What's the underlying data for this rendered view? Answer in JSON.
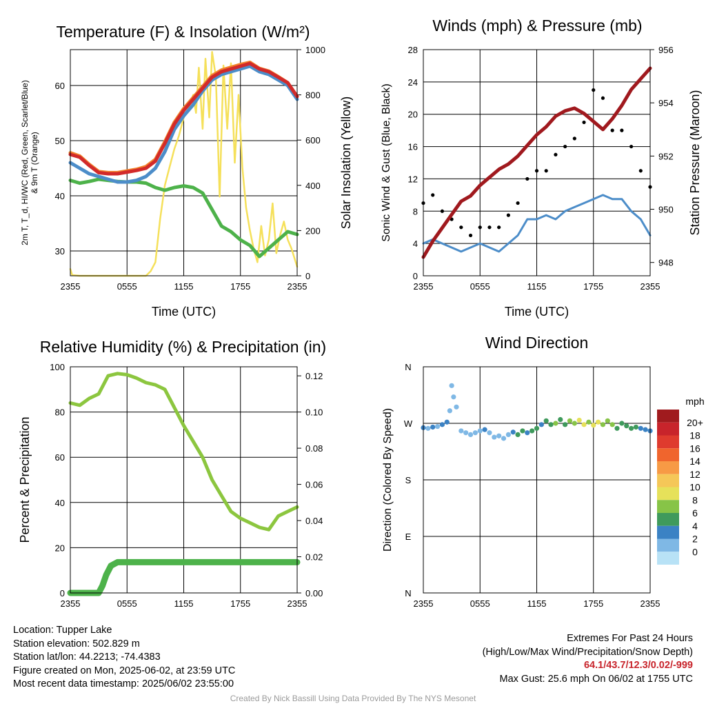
{
  "chart_data": [
    {
      "type": "line",
      "title": "Temperature (F) & Insolation (W/m²)",
      "xlabel": "Time (UTC)",
      "ylabel_left_lines": [
        "2m T, T_d, HI/WC (Red, Green, Scarlet/Blue)",
        "& 9m T (Orange)"
      ],
      "ylabel_right": "Solar Insolation (Yellow)",
      "x_ticks": [
        "2355",
        "0555",
        "1155",
        "1755",
        "2355"
      ],
      "ylim_left": [
        25.5,
        66.5
      ],
      "y_ticks_left": [
        30,
        40,
        50,
        60
      ],
      "ylim_right": [
        0,
        1000
      ],
      "y_ticks_right": [
        0,
        200,
        400,
        600,
        800,
        1000
      ],
      "grid": true,
      "series": [
        {
          "name": "Red",
          "axis": "left",
          "color": "#d22a2a",
          "x": [
            0,
            1,
            2,
            3,
            4,
            5,
            6,
            7,
            8,
            9,
            10,
            11,
            12,
            13,
            14,
            15,
            16,
            17,
            18,
            19,
            20,
            21,
            22,
            23,
            24
          ],
          "values": [
            47.5,
            47.0,
            45.5,
            44.2,
            44.0,
            44.0,
            44.3,
            44.6,
            45.0,
            46.3,
            49.5,
            53.0,
            55.5,
            57.5,
            59.5,
            61.5,
            62.5,
            63.0,
            63.5,
            64.0,
            63.0,
            62.5,
            61.5,
            60.5,
            58.0
          ]
        },
        {
          "name": "Orange",
          "axis": "left",
          "color": "#f2822a",
          "x": [
            0,
            1,
            2,
            3,
            4,
            5,
            6,
            7,
            8,
            9,
            10,
            11,
            12,
            13,
            14,
            15,
            16,
            17,
            18,
            19,
            20,
            21,
            22,
            23,
            24
          ],
          "values": [
            47.8,
            47.2,
            45.7,
            44.4,
            44.2,
            44.2,
            44.5,
            44.8,
            45.3,
            46.6,
            49.8,
            53.3,
            55.8,
            57.8,
            59.8,
            61.8,
            62.8,
            63.3,
            63.8,
            64.2,
            63.1,
            62.6,
            61.6,
            60.5,
            58.0
          ]
        },
        {
          "name": "Blue",
          "axis": "left",
          "color": "#4c8dc9",
          "x": [
            0,
            1,
            2,
            3,
            4,
            5,
            6,
            7,
            8,
            9,
            10,
            11,
            12,
            13,
            14,
            15,
            16,
            17,
            18,
            19,
            20,
            21,
            22,
            23,
            24
          ],
          "values": [
            46.0,
            45.0,
            44.0,
            43.5,
            43.0,
            42.5,
            42.5,
            42.8,
            43.5,
            45.0,
            48.0,
            52.0,
            54.5,
            56.5,
            59.0,
            61.0,
            62.0,
            62.5,
            63.0,
            63.5,
            62.5,
            62.0,
            61.0,
            60.0,
            57.5
          ]
        },
        {
          "name": "Green",
          "axis": "left",
          "color": "#4db24a",
          "x": [
            0,
            1,
            2,
            3,
            4,
            5,
            6,
            7,
            8,
            9,
            10,
            11,
            12,
            13,
            14,
            15,
            16,
            17,
            18,
            19,
            20,
            21,
            22,
            23,
            24
          ],
          "values": [
            42.8,
            42.3,
            42.6,
            43.0,
            42.8,
            42.6,
            42.5,
            42.5,
            42.3,
            41.5,
            41.0,
            41.5,
            41.8,
            41.5,
            40.5,
            37.5,
            34.5,
            33.5,
            32.0,
            31.0,
            29.0,
            30.5,
            32.0,
            33.5,
            33.0
          ]
        },
        {
          "name": "Yellow",
          "axis": "right",
          "color": "#f5e05a",
          "x": [
            0,
            0.2,
            1,
            2,
            3,
            4,
            5,
            6,
            7,
            8,
            8.5,
            9,
            9.5,
            10,
            10.5,
            11,
            11.5,
            12,
            12.5,
            13,
            13.3,
            13.6,
            14,
            14.3,
            14.7,
            15,
            15.4,
            15.8,
            16.2,
            16.6,
            17,
            17.4,
            17.8,
            18.2,
            18.6,
            19,
            19.4,
            19.8,
            20.2,
            20.6,
            21,
            21.4,
            21.8,
            22.2,
            22.6,
            23,
            23.4,
            24
          ],
          "values": [
            30,
            3,
            0,
            0,
            0,
            0,
            0,
            0,
            0,
            0,
            20,
            60,
            250,
            400,
            480,
            560,
            620,
            700,
            740,
            800,
            720,
            920,
            650,
            960,
            700,
            990,
            880,
            350,
            930,
            650,
            940,
            500,
            800,
            480,
            300,
            200,
            120,
            60,
            220,
            90,
            160,
            320,
            100,
            180,
            240,
            160,
            120,
            40
          ]
        }
      ]
    },
    {
      "type": "line",
      "title": "Winds (mph) & Pressure (mb)",
      "xlabel": "Time (UTC)",
      "ylabel_left": "Sonic Wind & Gust (Blue, Black)",
      "ylabel_right": "Station Pressure (Maroon)",
      "x_ticks": [
        "2355",
        "0555",
        "1155",
        "1755",
        "2355"
      ],
      "ylim_left": [
        0,
        28
      ],
      "y_ticks_left": [
        0,
        4,
        8,
        12,
        16,
        20,
        24,
        28
      ],
      "ylim_right": [
        947.5,
        956
      ],
      "y_ticks_right": [
        948,
        950,
        952,
        954,
        956
      ],
      "grid": true,
      "series": [
        {
          "name": "Blue",
          "axis": "left",
          "color": "#4c8dc9",
          "kind": "line",
          "x": [
            0,
            1,
            2,
            3,
            4,
            5,
            6,
            7,
            8,
            9,
            10,
            11,
            12,
            13,
            14,
            15,
            16,
            17,
            18,
            19,
            20,
            21,
            22,
            23,
            24
          ],
          "values": [
            4,
            4.5,
            4,
            3.5,
            3,
            3.5,
            4,
            3.5,
            3,
            4,
            5,
            7,
            7,
            7.5,
            7,
            8,
            8.5,
            9,
            9.5,
            10,
            9.5,
            9.5,
            8,
            7,
            5
          ]
        },
        {
          "name": "Black",
          "axis": "left",
          "color": "#000000",
          "kind": "scatter",
          "x": [
            0,
            1,
            2,
            3,
            4,
            5,
            6,
            7,
            8,
            9,
            10,
            11,
            12,
            13,
            14,
            15,
            16,
            17,
            18,
            19,
            20,
            21,
            22,
            23,
            24
          ],
          "values": [
            9,
            10,
            8,
            7,
            6,
            5,
            6,
            6,
            6,
            7.5,
            9,
            12,
            13,
            13,
            15,
            16,
            17,
            19,
            23,
            22,
            18,
            18,
            16,
            13,
            11
          ]
        },
        {
          "name": "Maroon",
          "axis": "right",
          "color": "#a0191e",
          "kind": "line",
          "x": [
            0,
            1,
            2,
            3,
            4,
            5,
            6,
            7,
            8,
            9,
            10,
            11,
            12,
            13,
            14,
            15,
            16,
            17,
            18,
            19,
            20,
            21,
            22,
            23,
            24
          ],
          "values": [
            948.2,
            948.8,
            949.3,
            949.8,
            950.3,
            950.5,
            950.9,
            951.2,
            951.5,
            951.7,
            952.0,
            952.4,
            952.8,
            953.1,
            953.5,
            953.7,
            953.8,
            953.6,
            953.3,
            953.0,
            953.4,
            953.9,
            954.5,
            954.9,
            955.3
          ]
        }
      ]
    },
    {
      "type": "line",
      "title": "Relative Humidity (%) & Precipitation (in)",
      "xlabel": "",
      "ylabel_left": "Percent & Precipitation",
      "x_ticks": [
        "2355",
        "0555",
        "1155",
        "1755",
        "2355"
      ],
      "ylim_left": [
        0,
        100
      ],
      "y_ticks_left": [
        0,
        20,
        40,
        60,
        80,
        100
      ],
      "ylim_right": [
        0,
        0.125
      ],
      "y_ticks_right": [
        "0.00",
        "0.02",
        "0.04",
        "0.06",
        "0.08",
        "0.10",
        "0.12"
      ],
      "grid": true,
      "series": [
        {
          "name": "RH",
          "axis": "left",
          "color": "#8cc63f",
          "x": [
            0,
            1,
            2,
            3,
            4,
            5,
            6,
            7,
            8,
            9,
            10,
            11,
            12,
            13,
            14,
            15,
            16,
            17,
            18,
            19,
            20,
            21,
            22,
            23,
            24
          ],
          "values": [
            84,
            83,
            86,
            88,
            96,
            97,
            96.5,
            95,
            93,
            92,
            90,
            82,
            74,
            67,
            60,
            50,
            43,
            36,
            33,
            31,
            29,
            28,
            34,
            36,
            38
          ]
        },
        {
          "name": "Precip",
          "axis": "right",
          "color": "#4db24a",
          "x": [
            0,
            1,
            2,
            3,
            3.4,
            3.8,
            4.3,
            5,
            6,
            8,
            10,
            12,
            14,
            16,
            18,
            20,
            22,
            24
          ],
          "values": [
            0,
            0,
            0,
            0,
            0.004,
            0.01,
            0.015,
            0.017,
            0.017,
            0.017,
            0.017,
            0.017,
            0.017,
            0.017,
            0.017,
            0.017,
            0.017,
            0.017
          ]
        }
      ]
    },
    {
      "type": "scatter",
      "title": "Wind Direction",
      "ylabel": "Direction (Colored By Speed)",
      "x_ticks": [
        "2355",
        "0555",
        "1155",
        "1755",
        "2355"
      ],
      "y_ticks": [
        "N",
        "W",
        "S",
        "E",
        "N"
      ],
      "y_tick_values": [
        360,
        270,
        180,
        90,
        0
      ],
      "ylim": [
        0,
        360
      ],
      "grid": true,
      "colorbar": {
        "title": "mph",
        "labels": [
          "20+",
          "18",
          "16",
          "14",
          "12",
          "10",
          "8",
          "6",
          "4",
          "2",
          "0"
        ],
        "colors": [
          "#a01b1e",
          "#c8242b",
          "#df3b2e",
          "#f0652d",
          "#f79a45",
          "#f5c758",
          "#e6e15a",
          "#87c447",
          "#3f9a5c",
          "#3b82c4",
          "#7fb8e5",
          "#b8e2f6"
        ]
      },
      "points": [
        {
          "t": 0,
          "dir": 263,
          "speed": 4
        },
        {
          "t": 0.5,
          "dir": 262,
          "speed": 3
        },
        {
          "t": 1,
          "dir": 264,
          "speed": 4
        },
        {
          "t": 1.5,
          "dir": 265,
          "speed": 3
        },
        {
          "t": 2,
          "dir": 268,
          "speed": 4
        },
        {
          "t": 2.5,
          "dir": 272,
          "speed": 4
        },
        {
          "t": 2.8,
          "dir": 290,
          "speed": 2
        },
        {
          "t": 3.0,
          "dir": 330,
          "speed": 2
        },
        {
          "t": 3.2,
          "dir": 312,
          "speed": 2
        },
        {
          "t": 3.5,
          "dir": 296,
          "speed": 2
        },
        {
          "t": 4,
          "dir": 258,
          "speed": 2
        },
        {
          "t": 4.5,
          "dir": 255,
          "speed": 2
        },
        {
          "t": 5,
          "dir": 252,
          "speed": 3
        },
        {
          "t": 5.5,
          "dir": 255,
          "speed": 2
        },
        {
          "t": 6,
          "dir": 258,
          "speed": 2
        },
        {
          "t": 6.5,
          "dir": 260,
          "speed": 4
        },
        {
          "t": 7,
          "dir": 255,
          "speed": 3
        },
        {
          "t": 7.5,
          "dir": 248,
          "speed": 2
        },
        {
          "t": 8,
          "dir": 250,
          "speed": 3
        },
        {
          "t": 8.5,
          "dir": 246,
          "speed": 2
        },
        {
          "t": 9,
          "dir": 252,
          "speed": 3
        },
        {
          "t": 9.5,
          "dir": 256,
          "speed": 4
        },
        {
          "t": 10,
          "dir": 252,
          "speed": 6
        },
        {
          "t": 10.5,
          "dir": 258,
          "speed": 6
        },
        {
          "t": 11,
          "dir": 255,
          "speed": 4
        },
        {
          "t": 11.5,
          "dir": 258,
          "speed": 6
        },
        {
          "t": 12,
          "dir": 262,
          "speed": 6
        },
        {
          "t": 12.5,
          "dir": 268,
          "speed": 5
        },
        {
          "t": 13,
          "dir": 274,
          "speed": 6
        },
        {
          "t": 13.5,
          "dir": 268,
          "speed": 7
        },
        {
          "t": 14,
          "dir": 270,
          "speed": 8
        },
        {
          "t": 14.5,
          "dir": 276,
          "speed": 7
        },
        {
          "t": 15,
          "dir": 268,
          "speed": 6
        },
        {
          "t": 15.5,
          "dir": 274,
          "speed": 9
        },
        {
          "t": 16,
          "dir": 270,
          "speed": 8
        },
        {
          "t": 16.5,
          "dir": 275,
          "speed": 10
        },
        {
          "t": 17,
          "dir": 268,
          "speed": 10
        },
        {
          "t": 17.5,
          "dir": 272,
          "speed": 9
        },
        {
          "t": 18,
          "dir": 267,
          "speed": 11
        },
        {
          "t": 18.5,
          "dir": 272,
          "speed": 10
        },
        {
          "t": 19,
          "dir": 268,
          "speed": 9
        },
        {
          "t": 19.5,
          "dir": 274,
          "speed": 9
        },
        {
          "t": 20,
          "dir": 268,
          "speed": 8
        },
        {
          "t": 20.5,
          "dir": 262,
          "speed": 7
        },
        {
          "t": 21,
          "dir": 270,
          "speed": 7
        },
        {
          "t": 21.5,
          "dir": 266,
          "speed": 6
        },
        {
          "t": 22,
          "dir": 262,
          "speed": 6
        },
        {
          "t": 22.5,
          "dir": 264,
          "speed": 6
        },
        {
          "t": 23,
          "dir": 262,
          "speed": 5
        },
        {
          "t": 23.5,
          "dir": 260,
          "speed": 5
        },
        {
          "t": 24,
          "dir": 258,
          "speed": 4
        }
      ]
    }
  ],
  "footer": {
    "location": "Location: Tupper Lake",
    "elevation": "Station elevation: 502.829 m",
    "latlon": "Station lat/lon: 44.2213; -74.4383",
    "created": "Figure created on Mon, 2025-06-02, at 23:59 UTC",
    "recent": "Most recent data timestamp: 2025/06/02 23:55:00",
    "extremes_title": "Extremes For Past 24 Hours",
    "extremes_subtitle": "(High/Low/Max Wind/Precipitation/Snow Depth)",
    "extremes_values": "64.1/43.7/12.3/0.02/-999",
    "max_gust": "Max Gust: 25.6 mph On 06/02 at 1755 UTC",
    "credit": "Created By Nick Bassill Using Data Provided By The NYS Mesonet"
  }
}
